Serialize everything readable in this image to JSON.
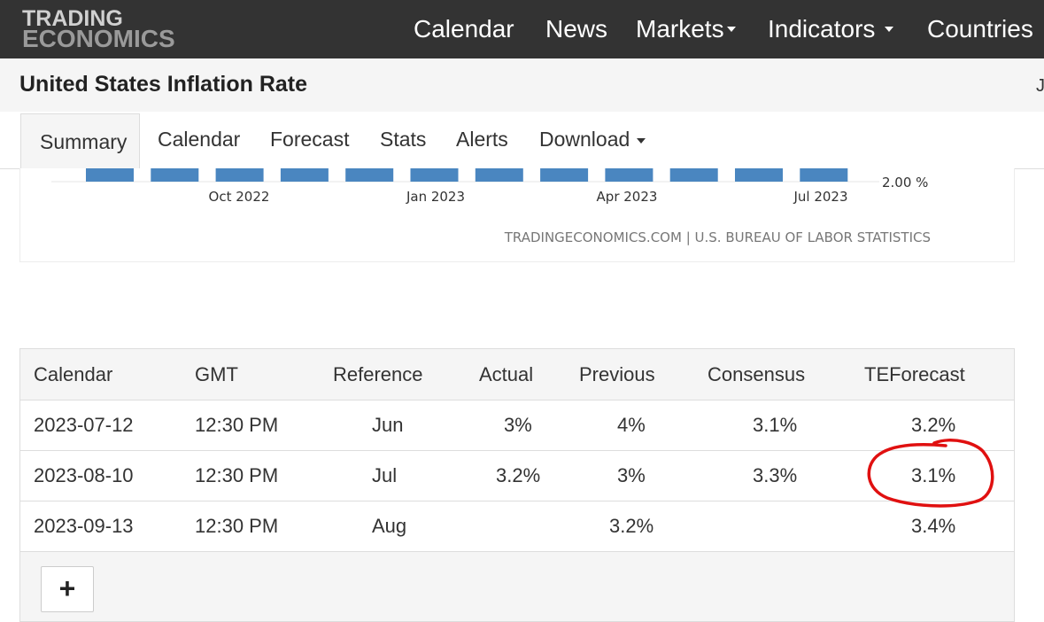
{
  "header": {
    "logo_line1": "TRADING",
    "logo_line2": "ECONOMICS",
    "nav": {
      "calendar": "Calendar",
      "news": "News",
      "markets": "Markets",
      "indicators": "Indicators",
      "countries": "Countries"
    }
  },
  "page": {
    "title": "United States Inflation Rate",
    "title_right_cut": "J"
  },
  "tabs": {
    "summary": "Summary",
    "calendar": "Calendar",
    "forecast": "Forecast",
    "stats": "Stats",
    "alerts": "Alerts",
    "download": "Download"
  },
  "chart_data": {
    "type": "bar",
    "x_tick_labels": [
      "Oct 2022",
      "Jan 2023",
      "Apr 2023",
      "Jul 2023"
    ],
    "y_tick_label": "2.00 %",
    "source": "TRADINGECONOMICS.COM | U.S. BUREAU OF LABOR STATISTICS",
    "bar_count": 12,
    "bar_color": "#4a86c0"
  },
  "table": {
    "headers": {
      "calendar": "Calendar",
      "gmt": "GMT",
      "reference": "Reference",
      "actual": "Actual",
      "previous": "Previous",
      "consensus": "Consensus",
      "teforecast": "TEForecast"
    },
    "rows": [
      {
        "date": "2023-07-12",
        "time": "12:30 PM",
        "reference": "Jun",
        "actual": "3%",
        "previous": "4%",
        "consensus": "3.1%",
        "teforecast": "3.2%"
      },
      {
        "date": "2023-08-10",
        "time": "12:30 PM",
        "reference": "Jul",
        "actual": "3.2%",
        "previous": "3%",
        "consensus": "3.3%",
        "teforecast": "3.1%"
      },
      {
        "date": "2023-09-13",
        "time": "12:30 PM",
        "reference": "Aug",
        "actual": "",
        "previous": "3.2%",
        "consensus": "",
        "teforecast": "3.4%"
      }
    ],
    "expand_label": "+"
  },
  "colors": {
    "topbar": "#333333",
    "annotation": "#e01010"
  }
}
